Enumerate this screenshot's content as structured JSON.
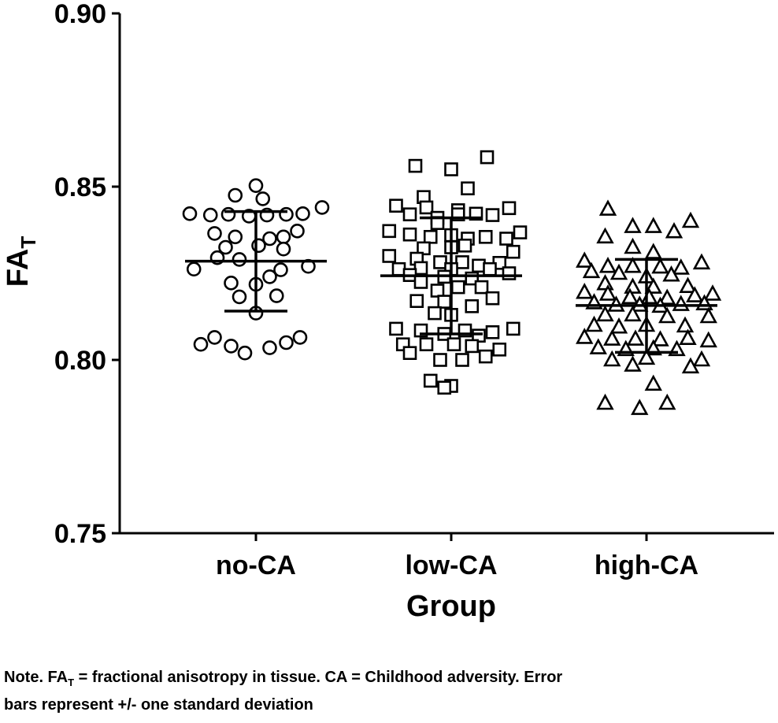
{
  "chart_data": {
    "type": "scatter",
    "xlabel": "Group",
    "ylabel_main": "FA",
    "ylabel_subscript": "T",
    "ylim": [
      0.75,
      0.9
    ],
    "yticks": [
      "0.75",
      "0.80",
      "0.85",
      "0.90"
    ],
    "grid": false,
    "categories": [
      "no-CA",
      "low-CA",
      "high-CA"
    ],
    "groups": [
      {
        "name": "no-CA",
        "marker": "circle",
        "mean": 0.8285,
        "sd_lower": 0.8141,
        "sd_upper": 0.8428,
        "points": [
          {
            "dx": 0.0,
            "y": 0.8503
          },
          {
            "dx": -0.15,
            "y": 0.8475
          },
          {
            "dx": 0.05,
            "y": 0.8465
          },
          {
            "dx": 0.48,
            "y": 0.844
          },
          {
            "dx": -0.48,
            "y": 0.8422
          },
          {
            "dx": -0.33,
            "y": 0.8418
          },
          {
            "dx": -0.2,
            "y": 0.842
          },
          {
            "dx": -0.05,
            "y": 0.8415
          },
          {
            "dx": 0.08,
            "y": 0.8418
          },
          {
            "dx": 0.22,
            "y": 0.842
          },
          {
            "dx": 0.34,
            "y": 0.8422
          },
          {
            "dx": -0.3,
            "y": 0.8365
          },
          {
            "dx": 0.3,
            "y": 0.8372
          },
          {
            "dx": -0.15,
            "y": 0.8355
          },
          {
            "dx": 0.1,
            "y": 0.835
          },
          {
            "dx": 0.2,
            "y": 0.8355
          },
          {
            "dx": -0.22,
            "y": 0.8325
          },
          {
            "dx": 0.02,
            "y": 0.833
          },
          {
            "dx": 0.2,
            "y": 0.832
          },
          {
            "dx": -0.28,
            "y": 0.8295
          },
          {
            "dx": -0.12,
            "y": 0.829
          },
          {
            "dx": -0.45,
            "y": 0.8262
          },
          {
            "dx": 0.38,
            "y": 0.827
          },
          {
            "dx": 0.18,
            "y": 0.826
          },
          {
            "dx": 0.1,
            "y": 0.824
          },
          {
            "dx": -0.18,
            "y": 0.8222
          },
          {
            "dx": 0.0,
            "y": 0.8218
          },
          {
            "dx": -0.12,
            "y": 0.8182
          },
          {
            "dx": 0.15,
            "y": 0.8185
          },
          {
            "dx": 0.0,
            "y": 0.8135
          },
          {
            "dx": -0.3,
            "y": 0.8065
          },
          {
            "dx": 0.32,
            "y": 0.8065
          },
          {
            "dx": -0.18,
            "y": 0.804
          },
          {
            "dx": 0.22,
            "y": 0.805
          },
          {
            "dx": -0.4,
            "y": 0.8045
          },
          {
            "dx": -0.08,
            "y": 0.802
          },
          {
            "dx": 0.1,
            "y": 0.8035
          }
        ]
      },
      {
        "name": "low-CA",
        "marker": "square",
        "mean": 0.8243,
        "sd_lower": 0.8075,
        "sd_upper": 0.841,
        "points": [
          {
            "dx": 0.26,
            "y": 0.8585
          },
          {
            "dx": -0.26,
            "y": 0.856
          },
          {
            "dx": 0.0,
            "y": 0.855
          },
          {
            "dx": 0.12,
            "y": 0.8495
          },
          {
            "dx": -0.2,
            "y": 0.847
          },
          {
            "dx": -0.4,
            "y": 0.8445
          },
          {
            "dx": -0.18,
            "y": 0.844
          },
          {
            "dx": 0.05,
            "y": 0.8432
          },
          {
            "dx": 0.42,
            "y": 0.8438
          },
          {
            "dx": -0.3,
            "y": 0.842
          },
          {
            "dx": -0.1,
            "y": 0.841
          },
          {
            "dx": 0.05,
            "y": 0.842
          },
          {
            "dx": 0.18,
            "y": 0.8422
          },
          {
            "dx": 0.3,
            "y": 0.8418
          },
          {
            "dx": -0.1,
            "y": 0.8395
          },
          {
            "dx": -0.45,
            "y": 0.8372
          },
          {
            "dx": -0.3,
            "y": 0.8362
          },
          {
            "dx": -0.15,
            "y": 0.8355
          },
          {
            "dx": 0.0,
            "y": 0.836
          },
          {
            "dx": 0.12,
            "y": 0.835
          },
          {
            "dx": 0.25,
            "y": 0.8355
          },
          {
            "dx": 0.4,
            "y": 0.835
          },
          {
            "dx": 0.5,
            "y": 0.8368
          },
          {
            "dx": -0.2,
            "y": 0.8322
          },
          {
            "dx": 0.0,
            "y": 0.8325
          },
          {
            "dx": 0.1,
            "y": 0.833
          },
          {
            "dx": 0.45,
            "y": 0.8312
          },
          {
            "dx": -0.45,
            "y": 0.83
          },
          {
            "dx": -0.25,
            "y": 0.8292
          },
          {
            "dx": -0.08,
            "y": 0.8282
          },
          {
            "dx": 0.08,
            "y": 0.8282
          },
          {
            "dx": 0.2,
            "y": 0.8272
          },
          {
            "dx": 0.35,
            "y": 0.828
          },
          {
            "dx": -0.38,
            "y": 0.8262
          },
          {
            "dx": -0.22,
            "y": 0.8265
          },
          {
            "dx": 0.0,
            "y": 0.8262
          },
          {
            "dx": 0.28,
            "y": 0.8262
          },
          {
            "dx": 0.42,
            "y": 0.825
          },
          {
            "dx": -0.3,
            "y": 0.8245
          },
          {
            "dx": -0.05,
            "y": 0.824
          },
          {
            "dx": 0.15,
            "y": 0.8235
          },
          {
            "dx": -0.22,
            "y": 0.8225
          },
          {
            "dx": 0.05,
            "y": 0.821
          },
          {
            "dx": 0.22,
            "y": 0.821
          },
          {
            "dx": -0.1,
            "y": 0.82
          },
          {
            "dx": 0.3,
            "y": 0.8178
          },
          {
            "dx": -0.25,
            "y": 0.817
          },
          {
            "dx": -0.05,
            "y": 0.8168
          },
          {
            "dx": 0.15,
            "y": 0.8155
          },
          {
            "dx": -0.12,
            "y": 0.8135
          },
          {
            "dx": 0.0,
            "y": 0.813
          },
          {
            "dx": -0.4,
            "y": 0.809
          },
          {
            "dx": -0.22,
            "y": 0.8085
          },
          {
            "dx": 0.1,
            "y": 0.8085
          },
          {
            "dx": 0.3,
            "y": 0.808
          },
          {
            "dx": 0.45,
            "y": 0.809
          },
          {
            "dx": -0.05,
            "y": 0.8075
          },
          {
            "dx": 0.2,
            "y": 0.807
          },
          {
            "dx": -0.35,
            "y": 0.8045
          },
          {
            "dx": -0.18,
            "y": 0.8045
          },
          {
            "dx": 0.02,
            "y": 0.8045
          },
          {
            "dx": 0.15,
            "y": 0.804
          },
          {
            "dx": 0.35,
            "y": 0.803
          },
          {
            "dx": -0.3,
            "y": 0.802
          },
          {
            "dx": -0.08,
            "y": 0.8
          },
          {
            "dx": 0.08,
            "y": 0.8
          },
          {
            "dx": 0.25,
            "y": 0.801
          },
          {
            "dx": -0.15,
            "y": 0.794
          },
          {
            "dx": 0.0,
            "y": 0.7925
          },
          {
            "dx": -0.05,
            "y": 0.792
          }
        ]
      },
      {
        "name": "high-CA",
        "marker": "triangle",
        "mean": 0.8157,
        "sd_lower": 0.8022,
        "sd_upper": 0.829,
        "points": [
          {
            "dx": -0.28,
            "y": 0.8435
          },
          {
            "dx": 0.32,
            "y": 0.84
          },
          {
            "dx": 0.05,
            "y": 0.8385
          },
          {
            "dx": -0.1,
            "y": 0.8385
          },
          {
            "dx": 0.2,
            "y": 0.837
          },
          {
            "dx": -0.3,
            "y": 0.8355
          },
          {
            "dx": -0.1,
            "y": 0.8325
          },
          {
            "dx": 0.05,
            "y": 0.831
          },
          {
            "dx": -0.45,
            "y": 0.8285
          },
          {
            "dx": -0.28,
            "y": 0.827
          },
          {
            "dx": -0.1,
            "y": 0.827
          },
          {
            "dx": 0.1,
            "y": 0.8268
          },
          {
            "dx": 0.25,
            "y": 0.8265
          },
          {
            "dx": 0.4,
            "y": 0.828
          },
          {
            "dx": -0.4,
            "y": 0.8255
          },
          {
            "dx": -0.2,
            "y": 0.825
          },
          {
            "dx": 0.0,
            "y": 0.824
          },
          {
            "dx": 0.18,
            "y": 0.8245
          },
          {
            "dx": -0.3,
            "y": 0.822
          },
          {
            "dx": -0.1,
            "y": 0.821
          },
          {
            "dx": 0.05,
            "y": 0.821
          },
          {
            "dx": 0.3,
            "y": 0.8212
          },
          {
            "dx": -0.45,
            "y": 0.8195
          },
          {
            "dx": -0.28,
            "y": 0.819
          },
          {
            "dx": -0.12,
            "y": 0.818
          },
          {
            "dx": 0.02,
            "y": 0.818
          },
          {
            "dx": 0.15,
            "y": 0.8178
          },
          {
            "dx": 0.35,
            "y": 0.8185
          },
          {
            "dx": 0.48,
            "y": 0.819
          },
          {
            "dx": -0.38,
            "y": 0.8165
          },
          {
            "dx": -0.22,
            "y": 0.8158
          },
          {
            "dx": -0.05,
            "y": 0.8158
          },
          {
            "dx": 0.1,
            "y": 0.8155
          },
          {
            "dx": 0.25,
            "y": 0.816
          },
          {
            "dx": 0.42,
            "y": 0.8162
          },
          {
            "dx": -0.3,
            "y": 0.813
          },
          {
            "dx": -0.1,
            "y": 0.813
          },
          {
            "dx": 0.15,
            "y": 0.8125
          },
          {
            "dx": 0.45,
            "y": 0.8125
          },
          {
            "dx": -0.38,
            "y": 0.81
          },
          {
            "dx": -0.2,
            "y": 0.8095
          },
          {
            "dx": 0.0,
            "y": 0.81
          },
          {
            "dx": 0.28,
            "y": 0.8098
          },
          {
            "dx": -0.45,
            "y": 0.8065
          },
          {
            "dx": -0.25,
            "y": 0.806
          },
          {
            "dx": -0.08,
            "y": 0.806
          },
          {
            "dx": 0.1,
            "y": 0.8058
          },
          {
            "dx": 0.3,
            "y": 0.8062
          },
          {
            "dx": 0.45,
            "y": 0.8055
          },
          {
            "dx": -0.35,
            "y": 0.8035
          },
          {
            "dx": -0.15,
            "y": 0.803
          },
          {
            "dx": 0.05,
            "y": 0.8032
          },
          {
            "dx": 0.22,
            "y": 0.803
          },
          {
            "dx": -0.25,
            "y": 0.8
          },
          {
            "dx": 0.0,
            "y": 0.8005
          },
          {
            "dx": 0.4,
            "y": 0.8
          },
          {
            "dx": -0.1,
            "y": 0.7985
          },
          {
            "dx": 0.05,
            "y": 0.793
          },
          {
            "dx": -0.3,
            "y": 0.7875
          },
          {
            "dx": -0.05,
            "y": 0.786
          },
          {
            "dx": 0.15,
            "y": 0.7875
          },
          {
            "dx": 0.32,
            "y": 0.798
          }
        ]
      }
    ]
  },
  "note": {
    "line1_prefix": "Note. FA",
    "line1_sub": "T",
    "line1_rest": " = fractional anisotropy in tissue. CA = Childhood adversity. Error",
    "line2": "bars represent +/- one standard deviation"
  }
}
